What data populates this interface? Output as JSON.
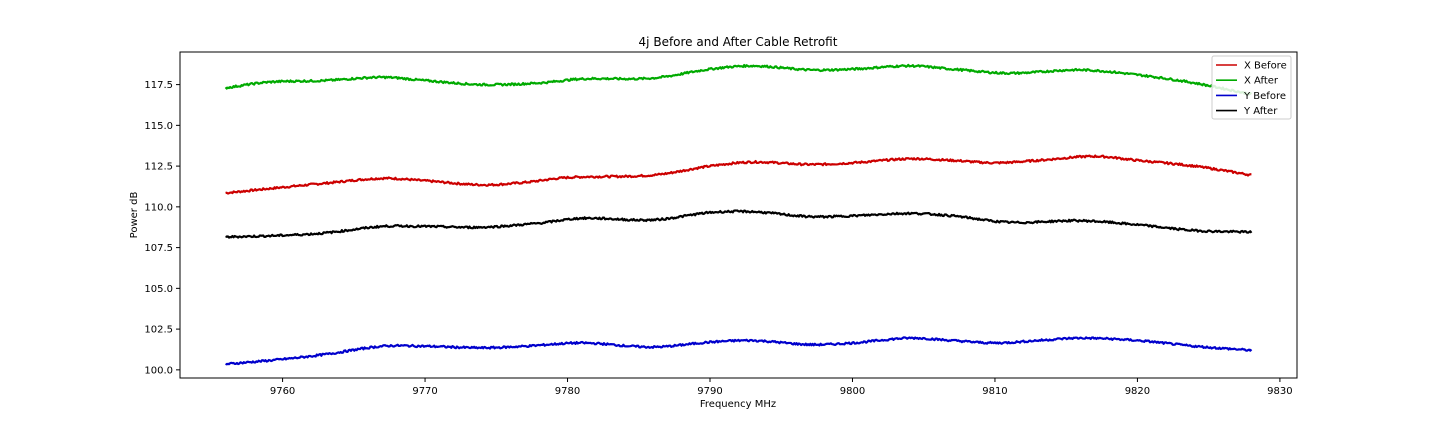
{
  "chart_data": {
    "type": "line",
    "title": "4j Before and After Cable Retrofit",
    "xlabel": "Frequency MHz",
    "ylabel": "Power dB",
    "xlim": [
      9752.8,
      9831.2
    ],
    "ylim": [
      99.5,
      119.5
    ],
    "xticks": [
      9760,
      9770,
      9780,
      9790,
      9800,
      9810,
      9820,
      9830
    ],
    "yticks": [
      100.0,
      102.5,
      105.0,
      107.5,
      110.0,
      112.5,
      115.0,
      117.5
    ],
    "grid": false,
    "legend_position": "top-right",
    "series": [
      {
        "name": "X Before",
        "color": "#cc0000",
        "x": [
          9756,
          9760,
          9763,
          9767,
          9770,
          9774,
          9777,
          9780,
          9786,
          9790,
          9793,
          9797,
          9800,
          9804,
          9807,
          9810,
          9813,
          9817,
          9820,
          9824,
          9828
        ],
        "y": [
          110.85,
          111.2,
          111.45,
          111.75,
          111.6,
          111.35,
          111.5,
          111.8,
          111.95,
          112.5,
          112.75,
          112.6,
          112.7,
          112.95,
          112.85,
          112.7,
          112.85,
          113.1,
          112.85,
          112.5,
          111.95
        ]
      },
      {
        "name": "X After",
        "color": "#00aa00",
        "x": [
          9756,
          9759,
          9763,
          9767,
          9770,
          9774,
          9778,
          9781,
          9786,
          9790,
          9793,
          9797,
          9800,
          9804,
          9807,
          9811,
          9816,
          9820,
          9824,
          9828
        ],
        "y": [
          117.3,
          117.65,
          117.75,
          117.95,
          117.75,
          117.5,
          117.6,
          117.85,
          117.9,
          118.45,
          118.65,
          118.4,
          118.45,
          118.65,
          118.45,
          118.2,
          118.4,
          118.1,
          117.6,
          116.9
        ]
      },
      {
        "name": "Y Before",
        "color": "#0000cc",
        "x": [
          9756,
          9760,
          9763,
          9767,
          9770,
          9774,
          9777,
          9781,
          9786,
          9790,
          9793,
          9797,
          9800,
          9804,
          9807,
          9810,
          9813,
          9816,
          9820,
          9824,
          9828
        ],
        "y": [
          100.35,
          100.65,
          100.95,
          101.45,
          101.45,
          101.35,
          101.45,
          101.65,
          101.4,
          101.7,
          101.8,
          101.55,
          101.65,
          101.95,
          101.8,
          101.65,
          101.8,
          101.95,
          101.8,
          101.45,
          101.2
        ]
      },
      {
        "name": "Y After",
        "color": "#000000",
        "x": [
          9756,
          9760,
          9763,
          9767,
          9770,
          9774,
          9778,
          9781,
          9786,
          9790,
          9793,
          9797,
          9800,
          9804,
          9807,
          9811,
          9816,
          9820,
          9824,
          9828
        ],
        "y": [
          108.15,
          108.25,
          108.4,
          108.8,
          108.8,
          108.75,
          109.0,
          109.3,
          109.2,
          109.65,
          109.7,
          109.4,
          109.45,
          109.6,
          109.45,
          109.05,
          109.15,
          108.9,
          108.55,
          108.45
        ]
      }
    ]
  }
}
